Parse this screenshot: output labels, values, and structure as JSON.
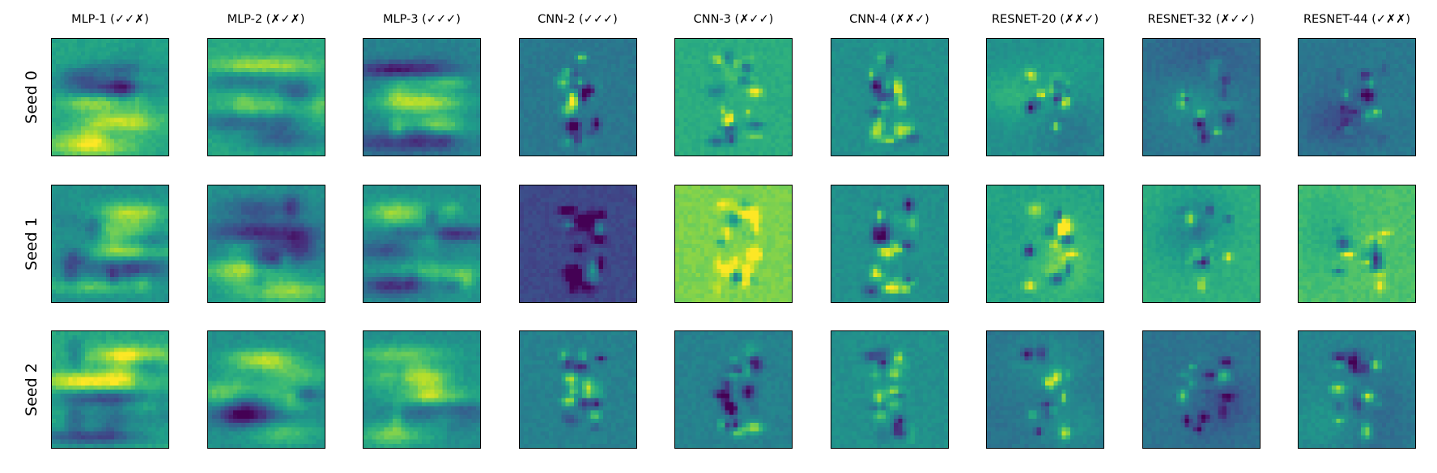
{
  "figure": {
    "columns": [
      {
        "title": "MLP-1 (✓✓✗)",
        "pattern": "mlp",
        "seed_hint": 11
      },
      {
        "title": "MLP-2 (✗✓✗)",
        "pattern": "mlp",
        "seed_hint": 23
      },
      {
        "title": "MLP-3 (✓✓✓)",
        "pattern": "mlp",
        "seed_hint": 37
      },
      {
        "title": "CNN-2 (✓✓✓)",
        "pattern": "cnn",
        "seed_hint": 41
      },
      {
        "title": "CNN-3 (✗✓✓)",
        "pattern": "cnn",
        "seed_hint": 53
      },
      {
        "title": "CNN-4 (✗✗✓)",
        "pattern": "cnn",
        "seed_hint": 67
      },
      {
        "title": "RESNET-20 (✗✗✓)",
        "pattern": "resnet",
        "seed_hint": 71
      },
      {
        "title": "RESNET-32 (✗✓✓)",
        "pattern": "resnet",
        "seed_hint": 83
      },
      {
        "title": "RESNET-44 (✓✗✗)",
        "pattern": "resnet",
        "seed_hint": 97
      }
    ],
    "rows": [
      {
        "label": "Seed 0"
      },
      {
        "label": "Seed 1"
      },
      {
        "label": "Seed 2"
      }
    ],
    "colormap": "viridis",
    "panel_background": [
      [
        "#21a685",
        "#27ad81",
        "#26828e",
        "#2a788e",
        "#29af7f",
        "#21918c",
        "#21918c",
        "#2c728e",
        "#2a788e"
      ],
      [
        "#21918c",
        "#21918c",
        "#21918c",
        "#3e4a89",
        "#7ad151",
        "#21918c",
        "#2a9f88",
        "#2db27d",
        "#4ac16d"
      ],
      [
        "#25ab82",
        "#21918c",
        "#21918c",
        "#26828e",
        "#26828e",
        "#21918c",
        "#2c728e",
        "#2c728e",
        "#25848e"
      ]
    ]
  }
}
